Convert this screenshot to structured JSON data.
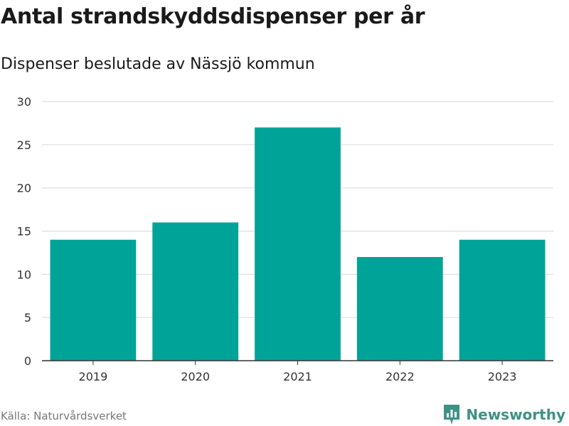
{
  "title": "Antal strandskyddsdispenser per år",
  "subtitle": "Dispenser beslutade av Nässjö kommun",
  "source": "Källa: Naturvårdsverket",
  "brand": "Newsworthy",
  "colors": {
    "bar": "#00a398",
    "grid": "#dddddd",
    "axis": "#333333",
    "brand": "#3f9185"
  },
  "chart_data": {
    "type": "bar",
    "categories": [
      "2019",
      "2020",
      "2021",
      "2022",
      "2023"
    ],
    "values": [
      14,
      16,
      27,
      12,
      14
    ],
    "title": "Antal strandskyddsdispenser per år",
    "subtitle": "Dispenser beslutade av Nässjö kommun",
    "xlabel": "",
    "ylabel": "",
    "ylim": [
      0,
      30
    ],
    "yticks": [
      0,
      5,
      10,
      15,
      20,
      25,
      30
    ],
    "grid": true,
    "legend": "none"
  }
}
